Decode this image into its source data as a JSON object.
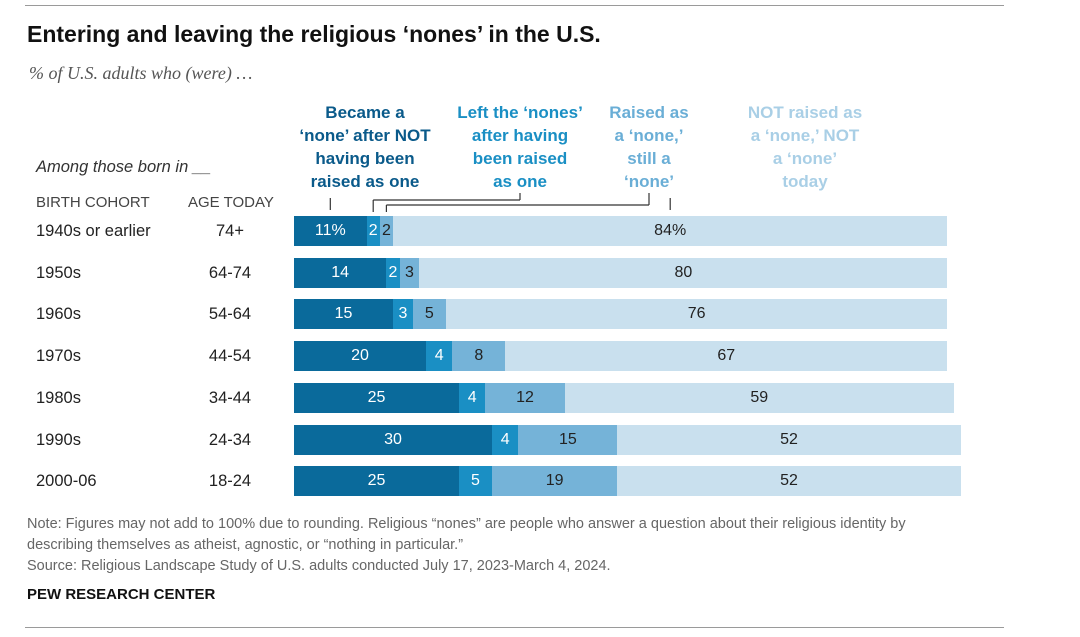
{
  "title": "Entering and leaving the religious ‘nones’ in the U.S.",
  "subtitle": "% of U.S. adults who (were) …",
  "row_header": "Among those born in __",
  "column_headers": {
    "cohort": "BIRTH COHORT",
    "age": "AGE TODAY"
  },
  "note_lines": [
    "Note: Figures may not add to 100% due to rounding. Religious “nones” are people who answer a question about their religious identity by",
    "describing themselves as atheist, agnostic, or “nothing in particular.”",
    "Source: Religious Landscape Study of U.S. adults conducted July 17, 2023-March 4, 2024."
  ],
  "source_org": "PEW RESEARCH CENTER",
  "chart_data": {
    "type": "bar",
    "orientation": "horizontal",
    "stacked": true,
    "categories": [
      "1940s or earlier",
      "1950s",
      "1960s",
      "1970s",
      "1980s",
      "1990s",
      "2000-06"
    ],
    "ages": [
      "74+",
      "64-74",
      "54-64",
      "44-54",
      "34-44",
      "24-34",
      "18-24"
    ],
    "series": [
      {
        "name": "Became a ‘none’ after NOT having been raised as one",
        "color": "#0a6a9b",
        "text_color": "#ffffff",
        "values": [
          11,
          14,
          15,
          20,
          25,
          30,
          25
        ]
      },
      {
        "name": "Left the ‘nones’ after having been raised as one",
        "color": "#1a8fc4",
        "text_color": "#ffffff",
        "values": [
          2,
          2,
          3,
          4,
          4,
          4,
          5
        ]
      },
      {
        "name": "Raised as a ‘none,’ still a ‘none’",
        "color": "#75b3d8",
        "text_color": "#222222",
        "values": [
          2,
          3,
          5,
          8,
          12,
          15,
          19
        ]
      },
      {
        "name": "NOT raised as a ‘none,’ NOT a ‘none’ today",
        "color": "#c9e0ee",
        "text_color": "#222222",
        "values": [
          84,
          80,
          76,
          67,
          59,
          52,
          52
        ]
      }
    ],
    "value_labels": [
      [
        "11%",
        "2",
        "2",
        "84%"
      ],
      [
        "14",
        "2",
        "3",
        "80"
      ],
      [
        "15",
        "3",
        "5",
        "76"
      ],
      [
        "20",
        "4",
        "8",
        "67"
      ],
      [
        "25",
        "4",
        "12",
        "59"
      ],
      [
        "30",
        "4",
        "15",
        "52"
      ],
      [
        "25",
        "5",
        "19",
        "52"
      ]
    ],
    "legend_lines": [
      "Became a\n‘none’ after NOT\nhaving been\nraised as one",
      "Left the ‘nones’\nafter having\nbeen raised\nas one",
      "Raised as\na ‘none,’\nstill a\n‘none’",
      "NOT raised as\na ‘none,’ NOT\na ‘none’\ntoday"
    ],
    "legend_colors": [
      "#0a5a8a",
      "#1a8fc4",
      "#6aaed6",
      "#a9cfe6"
    ],
    "xlim": [
      0,
      100
    ],
    "legend_position": "top"
  }
}
